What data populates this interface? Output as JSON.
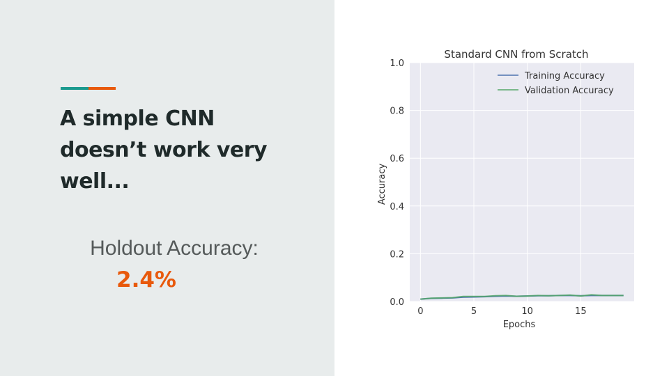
{
  "slide": {
    "title": "A simple CNN doesn’t work very well...",
    "holdout_label": "Holdout Accuracy:",
    "holdout_value": "2.4%",
    "accent_colors": [
      "#1a9a8e",
      "#e8590c"
    ]
  },
  "chart_data": {
    "type": "line",
    "title": "Standard CNN from Scratch",
    "xlabel": "Epochs",
    "ylabel": "Accuracy",
    "xlim": [
      -1,
      20
    ],
    "ylim": [
      0,
      1.0
    ],
    "xticks": [
      0,
      5,
      10,
      15
    ],
    "yticks": [
      0.0,
      0.2,
      0.4,
      0.6,
      0.8,
      1.0
    ],
    "ytick_labels": [
      "0.0",
      "0.2",
      "0.4",
      "0.6",
      "0.8",
      "1.0"
    ],
    "grid": true,
    "legend": "top-right",
    "x": [
      0,
      1,
      2,
      3,
      4,
      5,
      6,
      7,
      8,
      9,
      10,
      11,
      12,
      13,
      14,
      15,
      16,
      17,
      18,
      19
    ],
    "series": [
      {
        "name": "Training Accuracy",
        "color": "#4c72b0",
        "values": [
          0.01,
          0.013,
          0.014,
          0.015,
          0.018,
          0.019,
          0.02,
          0.022,
          0.023,
          0.022,
          0.023,
          0.024,
          0.024,
          0.025,
          0.025,
          0.024,
          0.025,
          0.025,
          0.025,
          0.025
        ]
      },
      {
        "name": "Validation Accuracy",
        "color": "#55a868",
        "values": [
          0.01,
          0.014,
          0.015,
          0.016,
          0.021,
          0.021,
          0.021,
          0.024,
          0.025,
          0.022,
          0.023,
          0.025,
          0.024,
          0.025,
          0.027,
          0.023,
          0.028,
          0.025,
          0.025,
          0.025
        ]
      }
    ]
  }
}
